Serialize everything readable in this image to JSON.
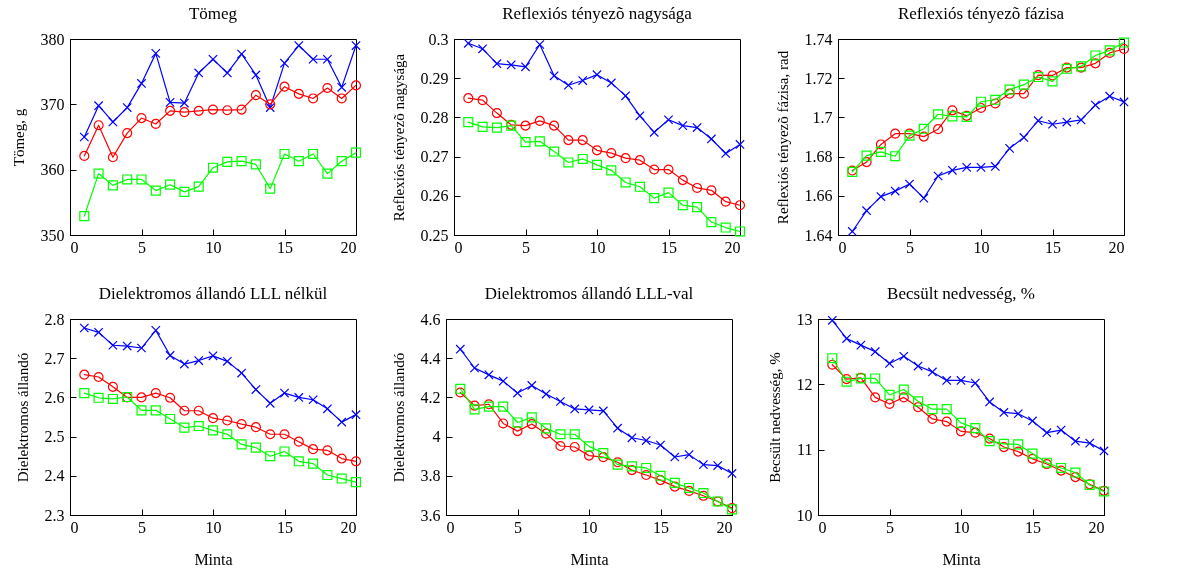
{
  "chart_data": [
    {
      "type": "line",
      "title": "Tömeg",
      "ylabel": "Tömeg, g",
      "x": [
        1,
        2,
        3,
        4,
        5,
        6,
        7,
        8,
        9,
        10,
        11,
        12,
        13,
        14,
        15,
        16,
        17,
        18,
        19,
        20
      ],
      "xlim": [
        0,
        20
      ],
      "xticks": [
        0,
        5,
        10,
        15,
        20
      ],
      "ylim": [
        350,
        380
      ],
      "yticks": [
        350,
        360,
        370,
        380
      ],
      "grid": false,
      "series": [
        {
          "color": "#0000ff",
          "marker": "cross",
          "values": [
            365,
            369.8,
            367.3,
            369.5,
            373.2,
            377.8,
            370.3,
            370.2,
            374.8,
            376.9,
            374.8,
            377.7,
            374.5,
            369.5,
            376.3,
            379,
            376.9,
            376.9,
            372.6,
            379
          ]
        },
        {
          "color": "#ff0000",
          "marker": "circle",
          "values": [
            362.1,
            366.8,
            361.9,
            365.6,
            367.9,
            367,
            369,
            368.8,
            369,
            369.2,
            369.1,
            369.2,
            371.4,
            370,
            372.7,
            371.6,
            370.9,
            372.5,
            370.9,
            372.9
          ]
        },
        {
          "color": "#00ff00",
          "marker": "square",
          "values": [
            352.9,
            359.4,
            357.6,
            358.5,
            358.5,
            356.8,
            357.7,
            356.6,
            357.4,
            360.3,
            361.2,
            361.3,
            360.8,
            357.1,
            362.4,
            361.3,
            362.4,
            359.4,
            361.3,
            362.6
          ]
        }
      ]
    },
    {
      "type": "line",
      "title": "Reflexiós tényezõ nagysága",
      "ylabel": "Reflexiós tényezõ nagysága",
      "x": [
        1,
        2,
        3,
        4,
        5,
        6,
        7,
        8,
        9,
        10,
        11,
        12,
        13,
        14,
        15,
        16,
        17,
        18,
        19,
        20
      ],
      "xlim": [
        0,
        20
      ],
      "xticks": [
        0,
        5,
        10,
        15,
        20
      ],
      "ylim": [
        0.25,
        0.3
      ],
      "yticks": [
        0.25,
        0.26,
        0.27,
        0.28,
        0.29,
        0.3
      ],
      "grid": false,
      "series": [
        {
          "color": "#0000ff",
          "marker": "cross",
          "values": [
            0.2989,
            0.2975,
            0.2937,
            0.2934,
            0.2929,
            0.2986,
            0.2906,
            0.2882,
            0.2894,
            0.2909,
            0.2888,
            0.2855,
            0.2804,
            0.2762,
            0.2794,
            0.2779,
            0.2774,
            0.2745,
            0.2708,
            0.2731
          ]
        },
        {
          "color": "#ff0000",
          "marker": "circle",
          "values": [
            0.2849,
            0.2844,
            0.2811,
            0.2781,
            0.2779,
            0.2791,
            0.2779,
            0.2742,
            0.2742,
            0.2716,
            0.2709,
            0.2696,
            0.2691,
            0.2667,
            0.2667,
            0.264,
            0.262,
            0.2614,
            0.2585,
            0.2576
          ]
        },
        {
          "color": "#00ff00",
          "marker": "square",
          "values": [
            0.2788,
            0.2776,
            0.2774,
            0.2779,
            0.2737,
            0.2739,
            0.2713,
            0.2685,
            0.2694,
            0.2679,
            0.2665,
            0.2634,
            0.2623,
            0.2594,
            0.2608,
            0.2576,
            0.2571,
            0.2533,
            0.2519,
            0.2509
          ]
        }
      ]
    },
    {
      "type": "line",
      "title": "Reflexiós tényezõ fázisa",
      "ylabel": "Reflexiós tényezõ fázisa, rad",
      "x": [
        1,
        2,
        3,
        4,
        5,
        6,
        7,
        8,
        9,
        10,
        11,
        12,
        13,
        14,
        15,
        16,
        17,
        18,
        19,
        20
      ],
      "xlim": [
        0,
        20
      ],
      "xticks": [
        0,
        5,
        10,
        15,
        20
      ],
      "ylim": [
        1.64,
        1.74
      ],
      "yticks": [
        1.64,
        1.66,
        1.68,
        1.7,
        1.72,
        1.74
      ],
      "grid": false,
      "series": [
        {
          "color": "#0000ff",
          "marker": "cross",
          "values": [
            1.6418,
            1.6524,
            1.6596,
            1.6624,
            1.666,
            1.6588,
            1.6701,
            1.673,
            1.6745,
            1.6745,
            1.675,
            1.6842,
            1.6898,
            1.6983,
            1.6965,
            1.6976,
            1.6987,
            1.7063,
            1.7108,
            1.7079
          ]
        },
        {
          "color": "#ff0000",
          "marker": "circle",
          "values": [
            1.6729,
            1.6772,
            1.6862,
            1.6917,
            1.6917,
            1.6902,
            1.694,
            1.7036,
            1.7008,
            1.7048,
            1.7071,
            1.7121,
            1.7121,
            1.7216,
            1.7214,
            1.7254,
            1.7254,
            1.7276,
            1.7329,
            1.7349
          ]
        },
        {
          "color": "#00ff00",
          "marker": "square",
          "values": [
            1.6722,
            1.6805,
            1.6824,
            1.6802,
            1.6907,
            1.6942,
            1.7016,
            1.7005,
            1.7003,
            1.708,
            1.709,
            1.7142,
            1.7167,
            1.7206,
            1.7184,
            1.7248,
            1.726,
            1.7316,
            1.7342,
            1.7382
          ]
        }
      ]
    },
    {
      "type": "line",
      "title": "Dielektromos állandó LLL nélkül",
      "xlabel": "Minta",
      "ylabel": "Dielektromos állandó",
      "x": [
        1,
        2,
        3,
        4,
        5,
        6,
        7,
        8,
        9,
        10,
        11,
        12,
        13,
        14,
        15,
        16,
        17,
        18,
        19,
        20
      ],
      "xlim": [
        0,
        20
      ],
      "xticks": [
        0,
        5,
        10,
        15,
        20
      ],
      "ylim": [
        2.3,
        2.8
      ],
      "yticks": [
        2.3,
        2.4,
        2.5,
        2.6,
        2.7,
        2.8
      ],
      "grid": false,
      "series": [
        {
          "color": "#0000ff",
          "marker": "cross",
          "values": [
            2.777,
            2.766,
            2.733,
            2.731,
            2.726,
            2.771,
            2.707,
            2.685,
            2.694,
            2.706,
            2.692,
            2.662,
            2.62,
            2.585,
            2.611,
            2.6,
            2.594,
            2.571,
            2.537,
            2.556
          ]
        },
        {
          "color": "#ff0000",
          "marker": "circle",
          "values": [
            2.658,
            2.652,
            2.627,
            2.6,
            2.6,
            2.611,
            2.599,
            2.566,
            2.566,
            2.547,
            2.541,
            2.532,
            2.524,
            2.506,
            2.506,
            2.487,
            2.468,
            2.465,
            2.444,
            2.437
          ]
        },
        {
          "color": "#00ff00",
          "marker": "square",
          "values": [
            2.611,
            2.599,
            2.596,
            2.601,
            2.567,
            2.567,
            2.545,
            2.523,
            2.527,
            2.516,
            2.506,
            2.48,
            2.472,
            2.45,
            2.462,
            2.437,
            2.431,
            2.402,
            2.393,
            2.384
          ]
        }
      ]
    },
    {
      "type": "line",
      "title": "Dielektromos állandó LLL-val",
      "xlabel": "Minta",
      "ylabel": "Dielektromos állandó",
      "x": [
        1,
        2,
        3,
        4,
        5,
        6,
        7,
        8,
        9,
        10,
        11,
        12,
        13,
        14,
        15,
        16,
        17,
        18,
        19,
        20
      ],
      "xlim": [
        0,
        20
      ],
      "xticks": [
        0,
        5,
        10,
        15,
        20
      ],
      "ylim": [
        3.6,
        4.6
      ],
      "yticks": [
        3.6,
        3.8,
        4,
        4.2,
        4.4,
        4.6
      ],
      "grid": false,
      "series": [
        {
          "color": "#0000ff",
          "marker": "cross",
          "values": [
            4.446,
            4.35,
            4.315,
            4.283,
            4.222,
            4.261,
            4.217,
            4.179,
            4.141,
            4.136,
            4.131,
            4.043,
            3.994,
            3.98,
            3.957,
            3.896,
            3.908,
            3.857,
            3.852,
            3.812
          ]
        },
        {
          "color": "#ff0000",
          "marker": "circle",
          "values": [
            4.225,
            4.158,
            4.165,
            4.067,
            4.028,
            4.064,
            4.015,
            3.952,
            3.947,
            3.903,
            3.895,
            3.869,
            3.829,
            3.804,
            3.778,
            3.745,
            3.723,
            3.698,
            3.669,
            3.635
          ]
        },
        {
          "color": "#00ff00",
          "marker": "square",
          "values": [
            4.244,
            4.139,
            4.153,
            4.153,
            4.072,
            4.098,
            4.042,
            4.012,
            4.012,
            3.95,
            3.916,
            3.857,
            3.848,
            3.84,
            3.8,
            3.764,
            3.738,
            3.712,
            3.669,
            3.629
          ]
        }
      ]
    },
    {
      "type": "line",
      "title": "Becsült nedvesség, %",
      "xlabel": "Minta",
      "ylabel": "Becsült nedvesség, %",
      "x": [
        1,
        2,
        3,
        4,
        5,
        6,
        7,
        8,
        9,
        10,
        11,
        12,
        13,
        14,
        15,
        16,
        17,
        18,
        19,
        20
      ],
      "xlim": [
        0,
        20
      ],
      "xticks": [
        0,
        5,
        10,
        15,
        20
      ],
      "ylim": [
        10,
        13
      ],
      "yticks": [
        10,
        11,
        12,
        13
      ],
      "grid": false,
      "series": [
        {
          "color": "#0000ff",
          "marker": "cross",
          "values": [
            12.98,
            12.7,
            12.6,
            12.5,
            12.32,
            12.43,
            12.28,
            12.19,
            12.06,
            12.06,
            12.02,
            11.73,
            11.57,
            11.55,
            11.44,
            11.26,
            11.3,
            11.13,
            11.1,
            10.98
          ]
        },
        {
          "color": "#ff0000",
          "marker": "circle",
          "values": [
            12.3,
            12.08,
            12.1,
            11.8,
            11.7,
            11.8,
            11.65,
            11.47,
            11.43,
            11.28,
            11.26,
            11.17,
            11.04,
            10.97,
            10.86,
            10.78,
            10.68,
            10.58,
            10.47,
            10.37
          ]
        },
        {
          "color": "#00ff00",
          "marker": "square",
          "values": [
            12.4,
            12.04,
            12.09,
            12.09,
            11.84,
            11.92,
            11.74,
            11.62,
            11.62,
            11.41,
            11.33,
            11.13,
            11.09,
            11.08,
            10.94,
            10.8,
            10.72,
            10.65,
            10.46,
            10.36
          ]
        }
      ]
    }
  ]
}
